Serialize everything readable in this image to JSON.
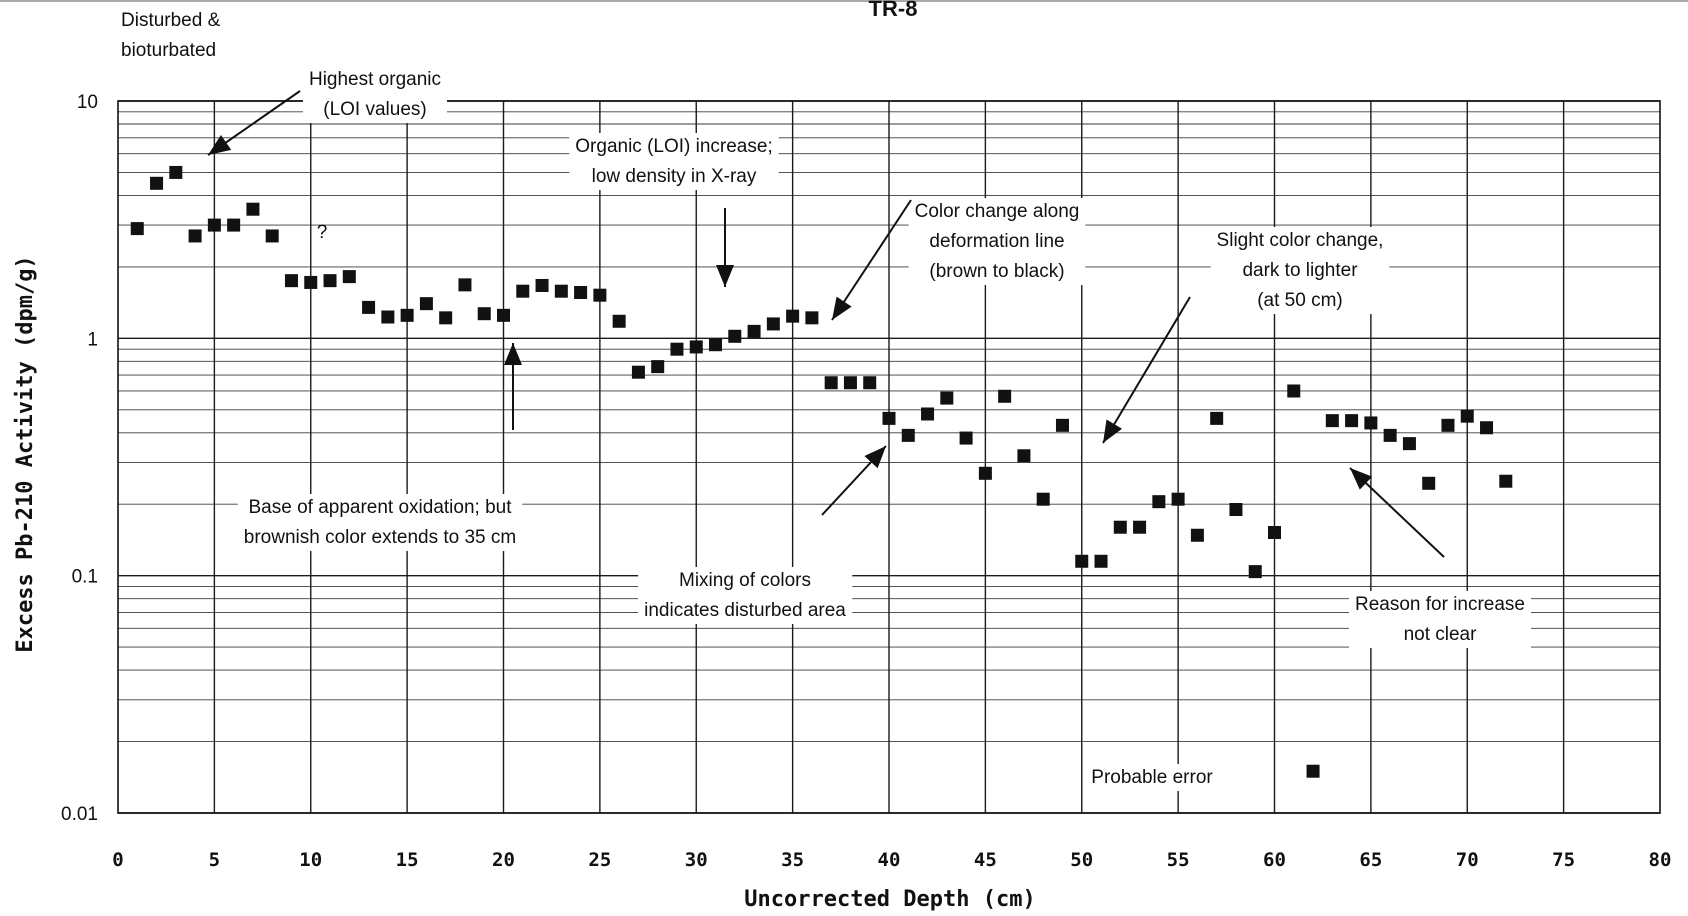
{
  "chart_data": {
    "type": "scatter",
    "title": "TR-8",
    "xlabel": "Uncorrected Depth (cm)",
    "ylabel": "Excess Pb-210 Activity (dpm/g)",
    "xlim": [
      0,
      80
    ],
    "ylim": [
      0.01,
      10
    ],
    "y_scale": "log",
    "grid": true,
    "x_ticks": [
      "0",
      "5",
      "10",
      "15",
      "20",
      "25",
      "30",
      "35",
      "40",
      "45",
      "50",
      "55",
      "60",
      "65",
      "70",
      "75",
      "80"
    ],
    "y_ticks": [
      "10",
      "1",
      "0.1",
      "0.01"
    ],
    "series": [
      {
        "marker": "square",
        "color": "#111111",
        "points": [
          [
            1,
            2.9
          ],
          [
            2,
            4.5
          ],
          [
            3,
            5.0
          ],
          [
            4,
            2.7
          ],
          [
            5,
            3.0
          ],
          [
            6,
            3.0
          ],
          [
            7,
            3.5
          ],
          [
            8,
            2.7
          ],
          [
            9,
            1.75
          ],
          [
            10,
            1.72
          ],
          [
            11,
            1.75
          ],
          [
            12,
            1.82
          ],
          [
            13,
            1.35
          ],
          [
            14,
            1.23
          ],
          [
            15,
            1.25
          ],
          [
            16,
            1.4
          ],
          [
            17,
            1.22
          ],
          [
            18,
            1.68
          ],
          [
            19,
            1.27
          ],
          [
            20,
            1.25
          ],
          [
            21,
            1.58
          ],
          [
            22,
            1.67
          ],
          [
            23,
            1.58
          ],
          [
            24,
            1.56
          ],
          [
            25,
            1.52
          ],
          [
            26,
            1.18
          ],
          [
            27,
            0.72
          ],
          [
            28,
            0.76
          ],
          [
            29,
            0.9
          ],
          [
            30,
            0.92
          ],
          [
            31,
            0.94
          ],
          [
            32,
            1.02
          ],
          [
            33,
            1.07
          ],
          [
            34,
            1.15
          ],
          [
            35,
            1.24
          ],
          [
            36,
            1.22
          ],
          [
            37,
            0.65
          ],
          [
            38,
            0.65
          ],
          [
            39,
            0.65
          ],
          [
            40,
            0.46
          ],
          [
            41,
            0.39
          ],
          [
            42,
            0.48
          ],
          [
            43,
            0.56
          ],
          [
            44,
            0.38
          ],
          [
            45,
            0.27
          ],
          [
            46,
            0.57
          ],
          [
            47,
            0.32
          ],
          [
            48,
            0.21
          ],
          [
            49,
            0.43
          ],
          [
            50,
            0.115
          ],
          [
            51,
            0.115
          ],
          [
            52,
            0.16
          ],
          [
            53,
            0.16
          ],
          [
            54,
            0.205
          ],
          [
            55,
            0.21
          ],
          [
            56,
            0.148
          ],
          [
            57,
            0.46
          ],
          [
            58,
            0.19
          ],
          [
            59,
            0.104
          ],
          [
            60,
            0.152
          ],
          [
            61,
            0.6
          ],
          [
            62,
            0.015
          ],
          [
            63,
            0.45
          ],
          [
            64,
            0.45
          ],
          [
            65,
            0.44
          ],
          [
            66,
            0.39
          ],
          [
            67,
            0.36
          ],
          [
            68,
            0.245
          ],
          [
            69,
            0.43
          ],
          [
            70,
            0.47
          ],
          [
            71,
            0.42
          ],
          [
            72,
            0.25
          ]
        ]
      }
    ],
    "annotations": [
      {
        "lines": [
          "Disturbed &",
          "bioturbated"
        ]
      },
      {
        "lines": [
          "Highest organic",
          "(LOI values)"
        ]
      },
      {
        "lines": [
          "?"
        ]
      },
      {
        "lines": [
          "Organic (LOI) increase;",
          "low density in X-ray"
        ]
      },
      {
        "lines": [
          "Color change along",
          "deformation line",
          "(brown to black)"
        ]
      },
      {
        "lines": [
          "Slight color change,",
          "dark to lighter",
          "(at 50 cm)"
        ]
      },
      {
        "lines": [
          "Base of apparent oxidation; but",
          "brownish color extends to 35 cm"
        ]
      },
      {
        "lines": [
          "Mixing of colors",
          "indicates disturbed area"
        ]
      },
      {
        "lines": [
          "Reason for increase",
          "not clear"
        ]
      },
      {
        "lines": [
          "Probable error"
        ]
      }
    ]
  }
}
